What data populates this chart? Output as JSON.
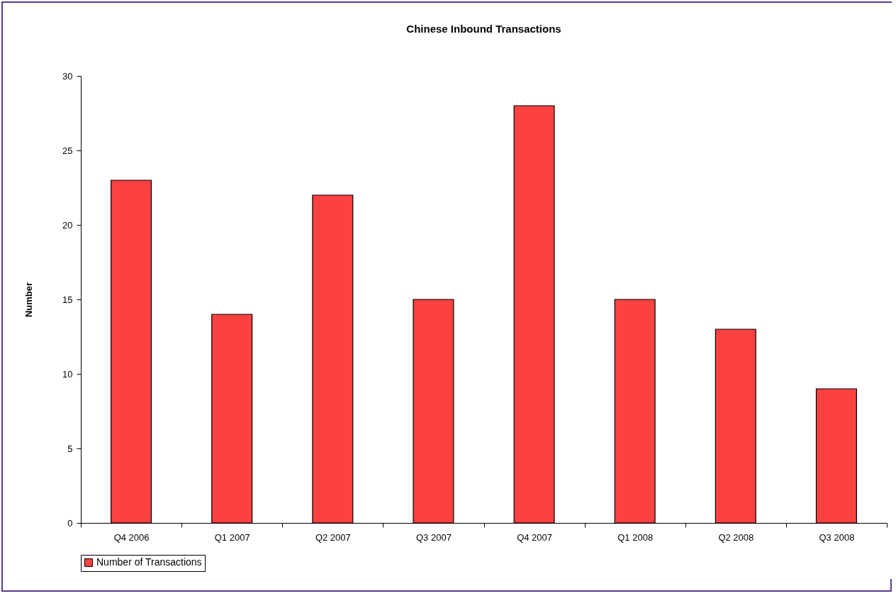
{
  "chart_data": {
    "type": "bar",
    "title": "Chinese Inbound Transactions",
    "ylabel": "Number",
    "categories": [
      "Q4 2006",
      "Q1 2007",
      "Q2 2007",
      "Q3 2007",
      "Q4 2007",
      "Q1 2008",
      "Q2 2008",
      "Q3 2008"
    ],
    "series": [
      {
        "name": "Number of Transactions",
        "color": "#fc4141",
        "values": [
          23,
          14,
          22,
          15,
          28,
          15,
          13,
          9
        ]
      }
    ],
    "ylim": [
      0,
      30
    ],
    "yticks": [
      0,
      5,
      10,
      15,
      20,
      25,
      30
    ],
    "legend": "bottom"
  }
}
